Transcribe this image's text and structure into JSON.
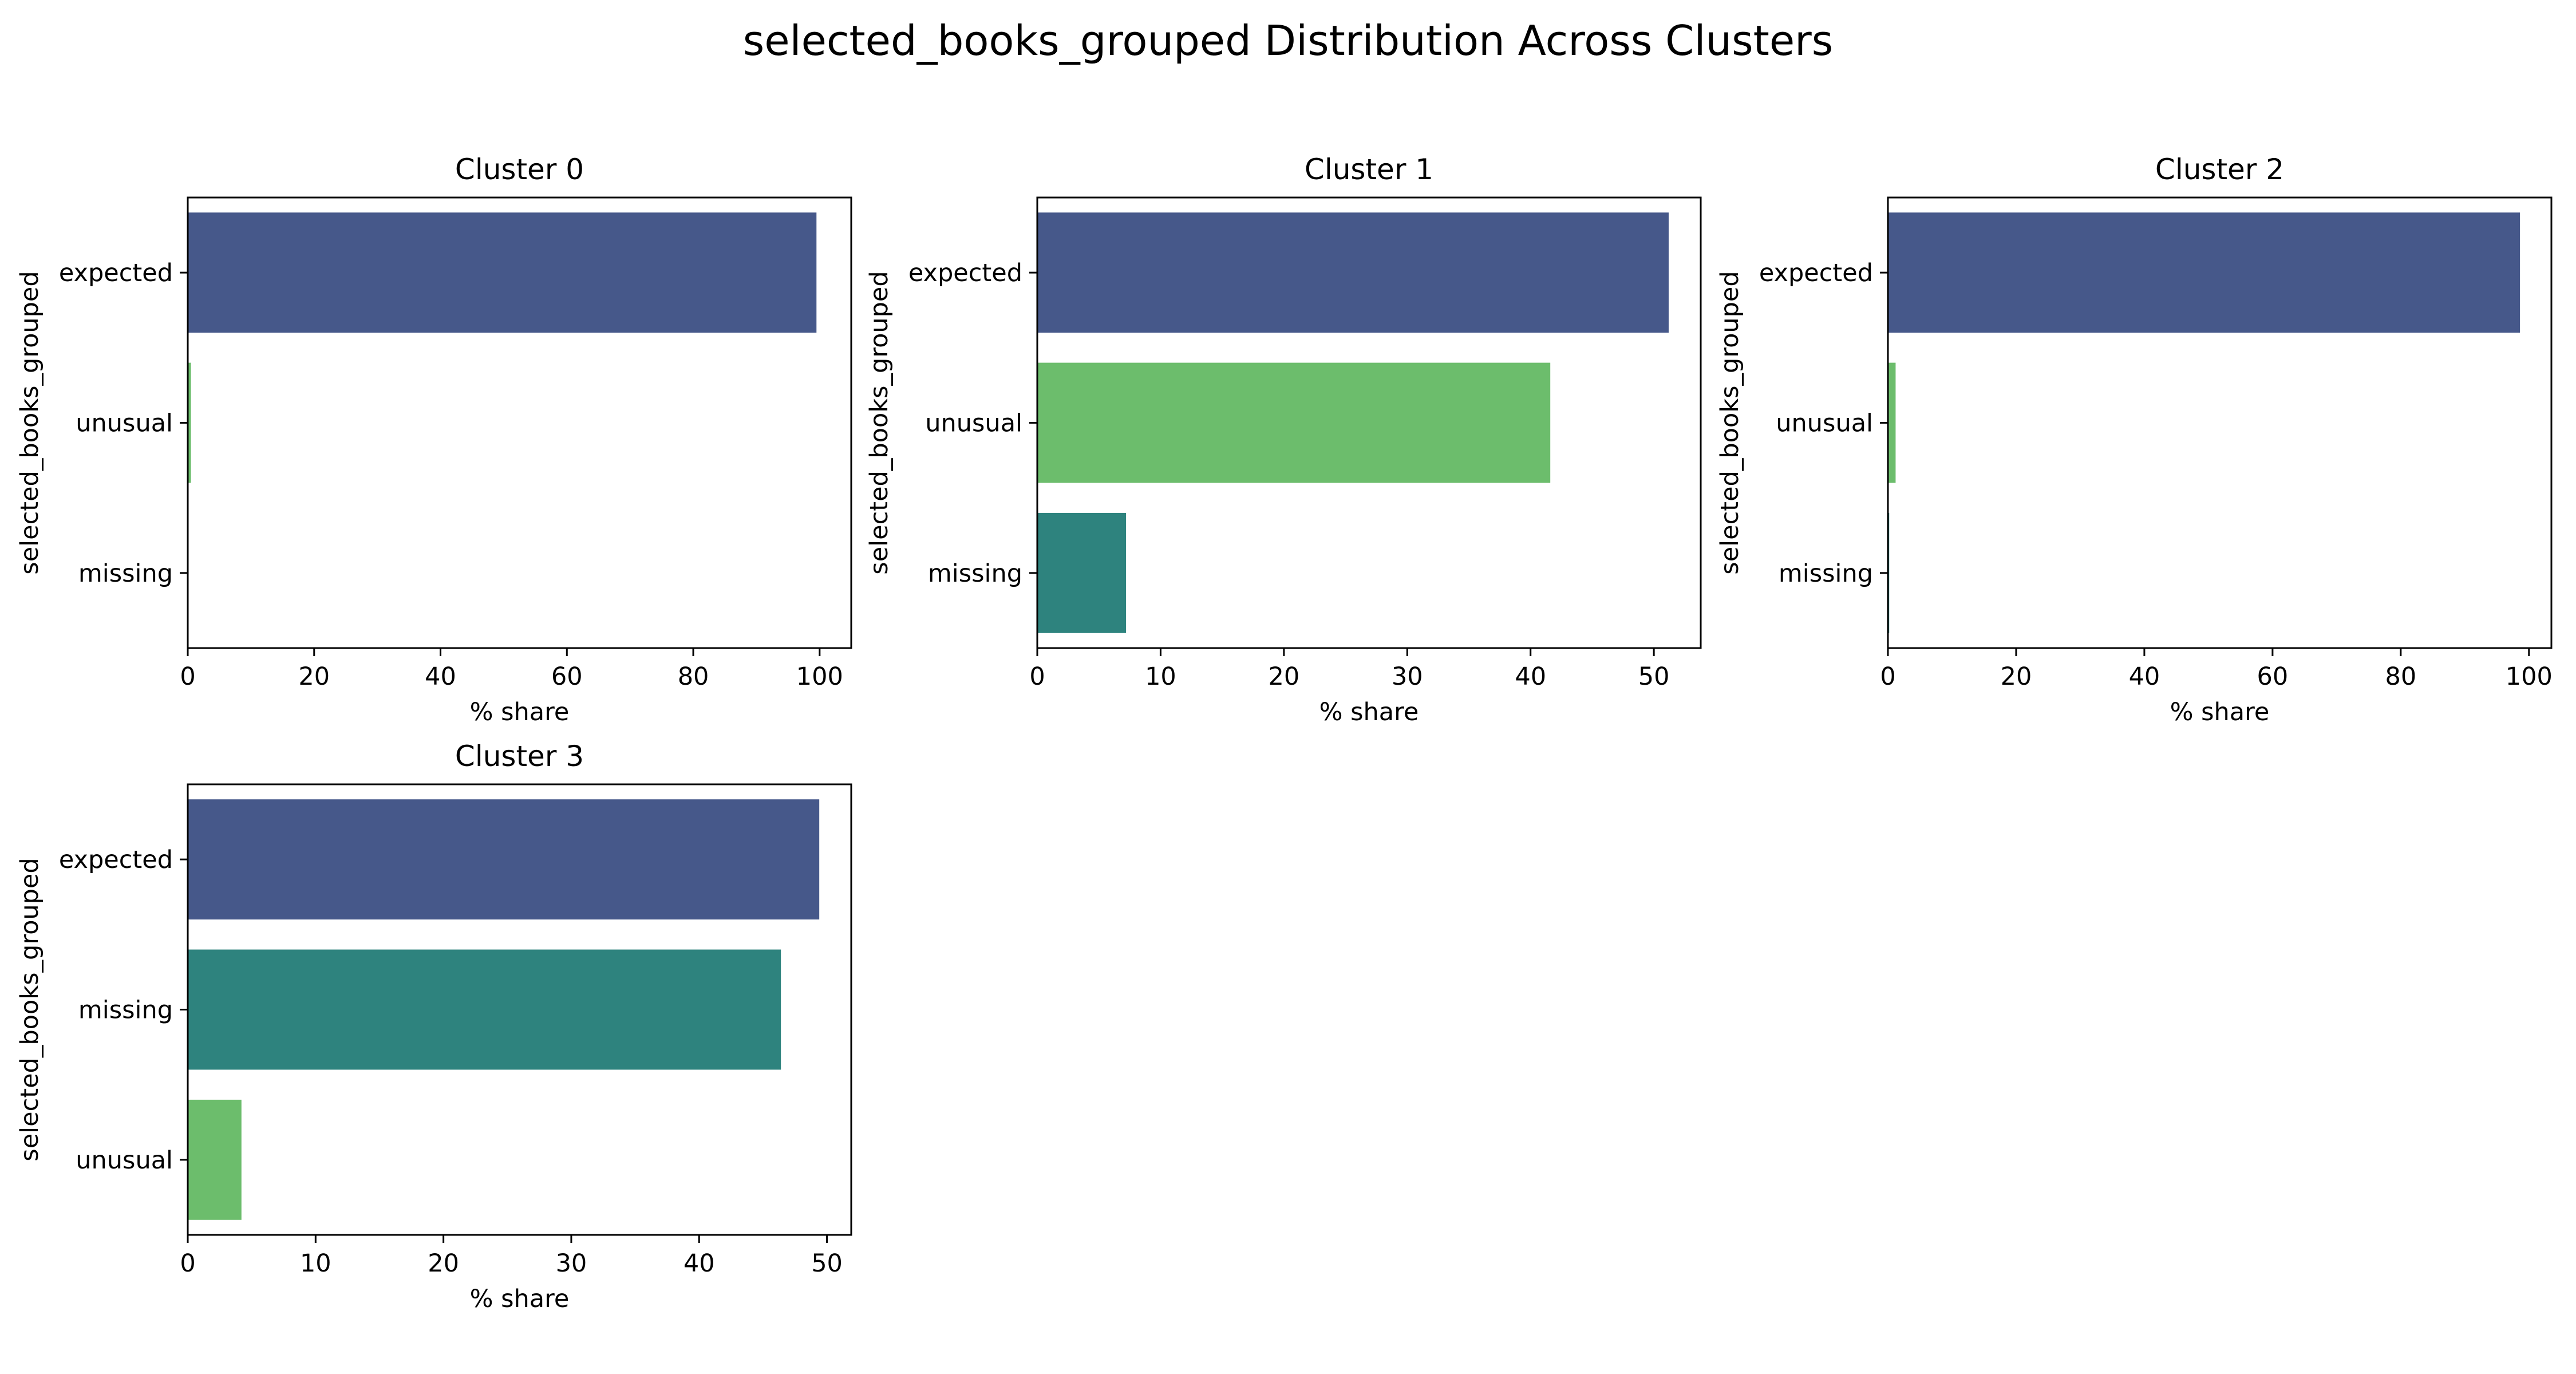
{
  "figure_title": "selected_books_grouped Distribution Across Clusters",
  "colors": {
    "expected": "#46588a",
    "unusual": "#6cbd6c",
    "missing": "#2e837e"
  },
  "chart_data": [
    {
      "type": "bar",
      "orientation": "horizontal",
      "title": "Cluster 0",
      "xlabel": "% share",
      "ylabel": "selected_books_grouped",
      "categories": [
        "expected",
        "unusual",
        "missing"
      ],
      "values": [
        99.5,
        0.5,
        0.0
      ],
      "xlim": [
        0,
        105
      ],
      "xticks": [
        0,
        20,
        40,
        60,
        80,
        100
      ]
    },
    {
      "type": "bar",
      "orientation": "horizontal",
      "title": "Cluster 1",
      "xlabel": "% share",
      "ylabel": "selected_books_grouped",
      "categories": [
        "expected",
        "unusual",
        "missing"
      ],
      "values": [
        51.2,
        41.6,
        7.2
      ],
      "xlim": [
        0,
        53.8
      ],
      "xticks": [
        0,
        10,
        20,
        30,
        40,
        50
      ]
    },
    {
      "type": "bar",
      "orientation": "horizontal",
      "title": "Cluster 2",
      "xlabel": "% share",
      "ylabel": "selected_books_grouped",
      "categories": [
        "expected",
        "unusual",
        "missing"
      ],
      "values": [
        98.6,
        1.2,
        0.2
      ],
      "xlim": [
        0,
        103.5
      ],
      "xticks": [
        0,
        20,
        40,
        60,
        80,
        100
      ]
    },
    {
      "type": "bar",
      "orientation": "horizontal",
      "title": "Cluster 3",
      "xlabel": "% share",
      "ylabel": "selected_books_grouped",
      "categories": [
        "expected",
        "missing",
        "unusual"
      ],
      "values": [
        49.4,
        46.4,
        4.2
      ],
      "xlim": [
        0,
        51.9
      ],
      "xticks": [
        0,
        10,
        20,
        30,
        40,
        50
      ]
    }
  ]
}
